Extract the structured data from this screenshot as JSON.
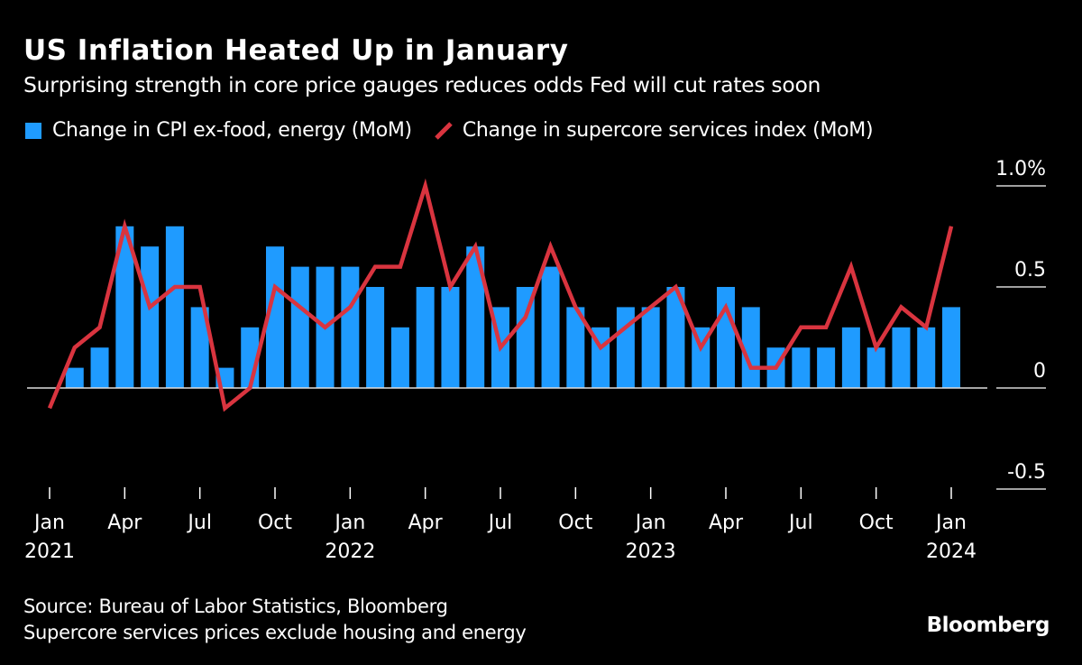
{
  "header": {
    "title": "US Inflation Heated Up in January",
    "subtitle": "Surprising strength in core price gauges reduces odds Fed will cut rates soon"
  },
  "footer": {
    "source": "Source: Bureau of Labor Statistics, Bloomberg",
    "note": "Supercore services prices exclude housing and energy",
    "logo": "Bloomberg"
  },
  "chart_data": {
    "type": "bar+line",
    "colors": {
      "bars": "#1f9bff",
      "line": "#d9343f",
      "background": "#000000"
    },
    "x": [
      "2021-01",
      "2021-02",
      "2021-03",
      "2021-04",
      "2021-05",
      "2021-06",
      "2021-07",
      "2021-08",
      "2021-09",
      "2021-10",
      "2021-11",
      "2021-12",
      "2022-01",
      "2022-02",
      "2022-03",
      "2022-04",
      "2022-05",
      "2022-06",
      "2022-07",
      "2022-08",
      "2022-09",
      "2022-10",
      "2022-11",
      "2022-12",
      "2023-01",
      "2023-02",
      "2023-03",
      "2023-04",
      "2023-05",
      "2023-06",
      "2023-07",
      "2023-08",
      "2023-09",
      "2023-10",
      "2023-11",
      "2023-12",
      "2024-01"
    ],
    "series": [
      {
        "name": "Change in CPI ex-food, energy (MoM)",
        "type": "bar",
        "values": [
          0.0,
          0.1,
          0.2,
          0.8,
          0.7,
          0.8,
          0.4,
          0.1,
          0.3,
          0.7,
          0.6,
          0.6,
          0.6,
          0.5,
          0.3,
          0.5,
          0.5,
          0.7,
          0.4,
          0.5,
          0.6,
          0.4,
          0.3,
          0.4,
          0.4,
          0.5,
          0.3,
          0.5,
          0.4,
          0.2,
          0.2,
          0.2,
          0.3,
          0.2,
          0.3,
          0.3,
          0.4
        ]
      },
      {
        "name": "Change in supercore services index (MoM)",
        "type": "line",
        "values": [
          -0.1,
          0.2,
          0.3,
          0.8,
          0.4,
          0.5,
          0.5,
          -0.1,
          0.0,
          0.5,
          0.4,
          0.3,
          0.4,
          0.6,
          0.6,
          1.0,
          0.5,
          0.7,
          0.2,
          0.35,
          0.7,
          0.4,
          0.2,
          0.3,
          0.4,
          0.5,
          0.2,
          0.4,
          0.1,
          0.1,
          0.3,
          0.3,
          0.6,
          0.2,
          0.4,
          0.3,
          0.8
        ]
      }
    ],
    "ylim": [
      -0.5,
      1.0
    ],
    "yticks": [
      {
        "v": 1.0,
        "label": "1.0%"
      },
      {
        "v": 0.5,
        "label": "0.5"
      },
      {
        "v": 0,
        "label": "0"
      },
      {
        "v": -0.5,
        "label": "-0.5"
      }
    ],
    "xticks": [
      {
        "i": 0,
        "label": "Jan",
        "year": "2021"
      },
      {
        "i": 3,
        "label": "Apr"
      },
      {
        "i": 6,
        "label": "Jul"
      },
      {
        "i": 9,
        "label": "Oct"
      },
      {
        "i": 12,
        "label": "Jan",
        "year": "2022"
      },
      {
        "i": 15,
        "label": "Apr"
      },
      {
        "i": 18,
        "label": "Jul"
      },
      {
        "i": 21,
        "label": "Oct"
      },
      {
        "i": 24,
        "label": "Jan",
        "year": "2023"
      },
      {
        "i": 27,
        "label": "Apr"
      },
      {
        "i": 30,
        "label": "Jul"
      },
      {
        "i": 33,
        "label": "Oct"
      },
      {
        "i": 36,
        "label": "Jan",
        "year": "2024"
      }
    ],
    "yaxis_position": "right",
    "legend_position": "top-left",
    "grid": false
  }
}
